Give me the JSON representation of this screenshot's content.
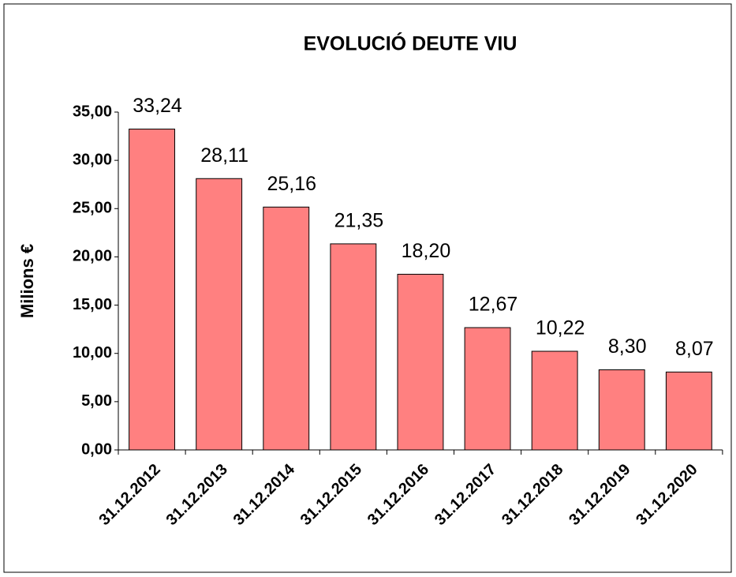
{
  "chart_data": {
    "type": "bar",
    "title": "EVOLUCIÓ DEUTE VIU",
    "y_label": "Milions €",
    "categories": [
      "31.12.2012",
      "31.12.2013",
      "31.12.2014",
      "31.12.2015",
      "31.12.2016",
      "31.12.2017",
      "31.12.2018",
      "31.12.2019",
      "31.12.2020"
    ],
    "values": [
      33.24,
      28.11,
      25.16,
      21.35,
      18.2,
      12.67,
      10.22,
      8.3,
      8.07
    ],
    "value_labels": [
      "33,24",
      "28,11",
      "25,16",
      "21,35",
      "18,20",
      "12,67",
      "10,22",
      "8,30",
      "8,07"
    ],
    "color": "#ff8080",
    "ylim": [
      0,
      35
    ],
    "yticks": [
      {
        "value": 0,
        "label": "0,00"
      },
      {
        "value": 5,
        "label": "5,00"
      },
      {
        "value": 10,
        "label": "10,00"
      },
      {
        "value": 15,
        "label": "15,00"
      },
      {
        "value": 20,
        "label": "20,00"
      },
      {
        "value": 25,
        "label": "25,00"
      },
      {
        "value": 30,
        "label": "30,00"
      },
      {
        "value": 35,
        "label": "35,00"
      }
    ],
    "grid": false
  }
}
